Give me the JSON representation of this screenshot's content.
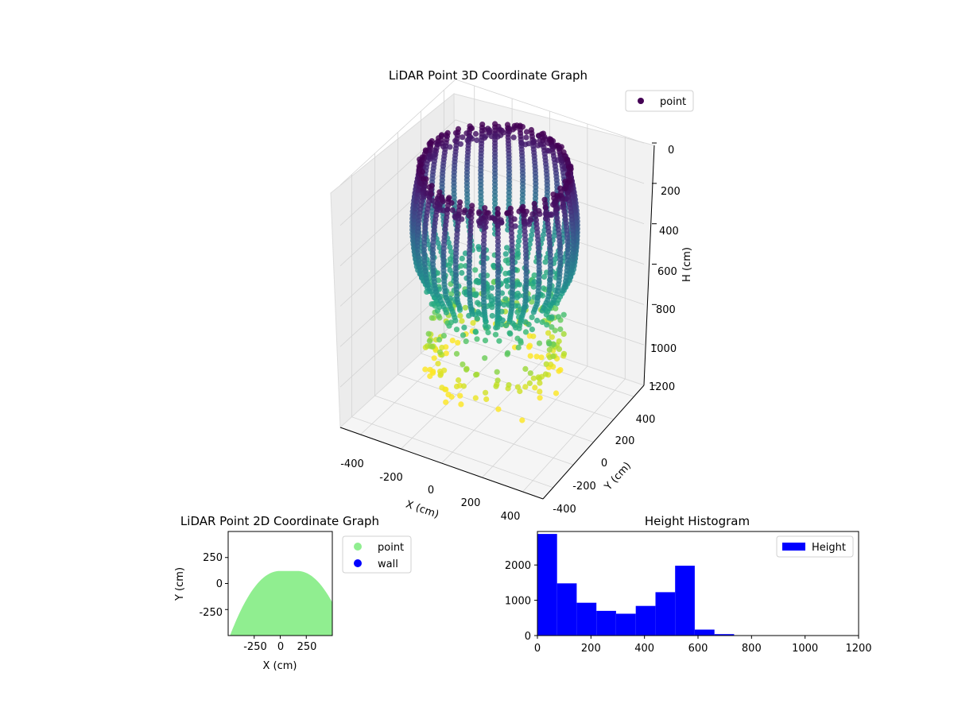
{
  "chart_data": [
    {
      "type": "scatter3d",
      "title": "LiDAR Point 3D Coordinate Graph",
      "xlabel": "X (cm)",
      "ylabel": "Y (cm)",
      "zlabel": "H (cm)",
      "xticks": [
        "-400",
        "-200",
        "0",
        "200",
        "400"
      ],
      "yticks": [
        "-400",
        "-200",
        "0",
        "200",
        "400"
      ],
      "zticks": [
        "0",
        "200",
        "400",
        "600",
        "800",
        "1000",
        "1200"
      ],
      "zlim": [
        0,
        1200
      ],
      "z_inverted": true,
      "colormap": "viridis",
      "legend": {
        "entries": [
          "point"
        ],
        "placement": "top-right"
      },
      "shape": {
        "description_free": true,
        "ring_radius_cm": 330,
        "vertical_lines": 36,
        "top_height_cm": 0,
        "bulk_height_range_cm": [
          0,
          620
        ],
        "outlier_max_height_cm": 1100
      }
    },
    {
      "type": "scatter",
      "title": "LiDAR Point 2D Coordinate Graph",
      "xlabel": "X (cm)",
      "ylabel": "Y (cm)",
      "xticks": [
        "-250",
        "0",
        "250"
      ],
      "yticks": [
        "250",
        "0",
        "-250"
      ],
      "xlim": [
        -500,
        500
      ],
      "ylim": [
        -500,
        500
      ],
      "legend": {
        "entries": [
          "point",
          "wall"
        ],
        "placement": "outside-right"
      },
      "series": [
        {
          "name": "point",
          "color": "#90ee90"
        },
        {
          "name": "wall",
          "color": "#0000ff"
        }
      ]
    },
    {
      "type": "bar",
      "title": "Height Histogram",
      "xticks": [
        "0",
        "200",
        "400",
        "600",
        "800",
        "1000",
        "1200"
      ],
      "yticks": [
        "0",
        "1000",
        "2000"
      ],
      "xlim": [
        0,
        1200
      ],
      "ylim": [
        0,
        2950
      ],
      "bin_width": 73.5,
      "bin_start": 0,
      "values": [
        2880,
        1480,
        930,
        700,
        620,
        840,
        1230,
        1980,
        170,
        40,
        0,
        0,
        0,
        0,
        0,
        0
      ],
      "color": "#0000ff",
      "legend": {
        "entries": [
          "Height"
        ],
        "placement": "top-right"
      }
    }
  ]
}
